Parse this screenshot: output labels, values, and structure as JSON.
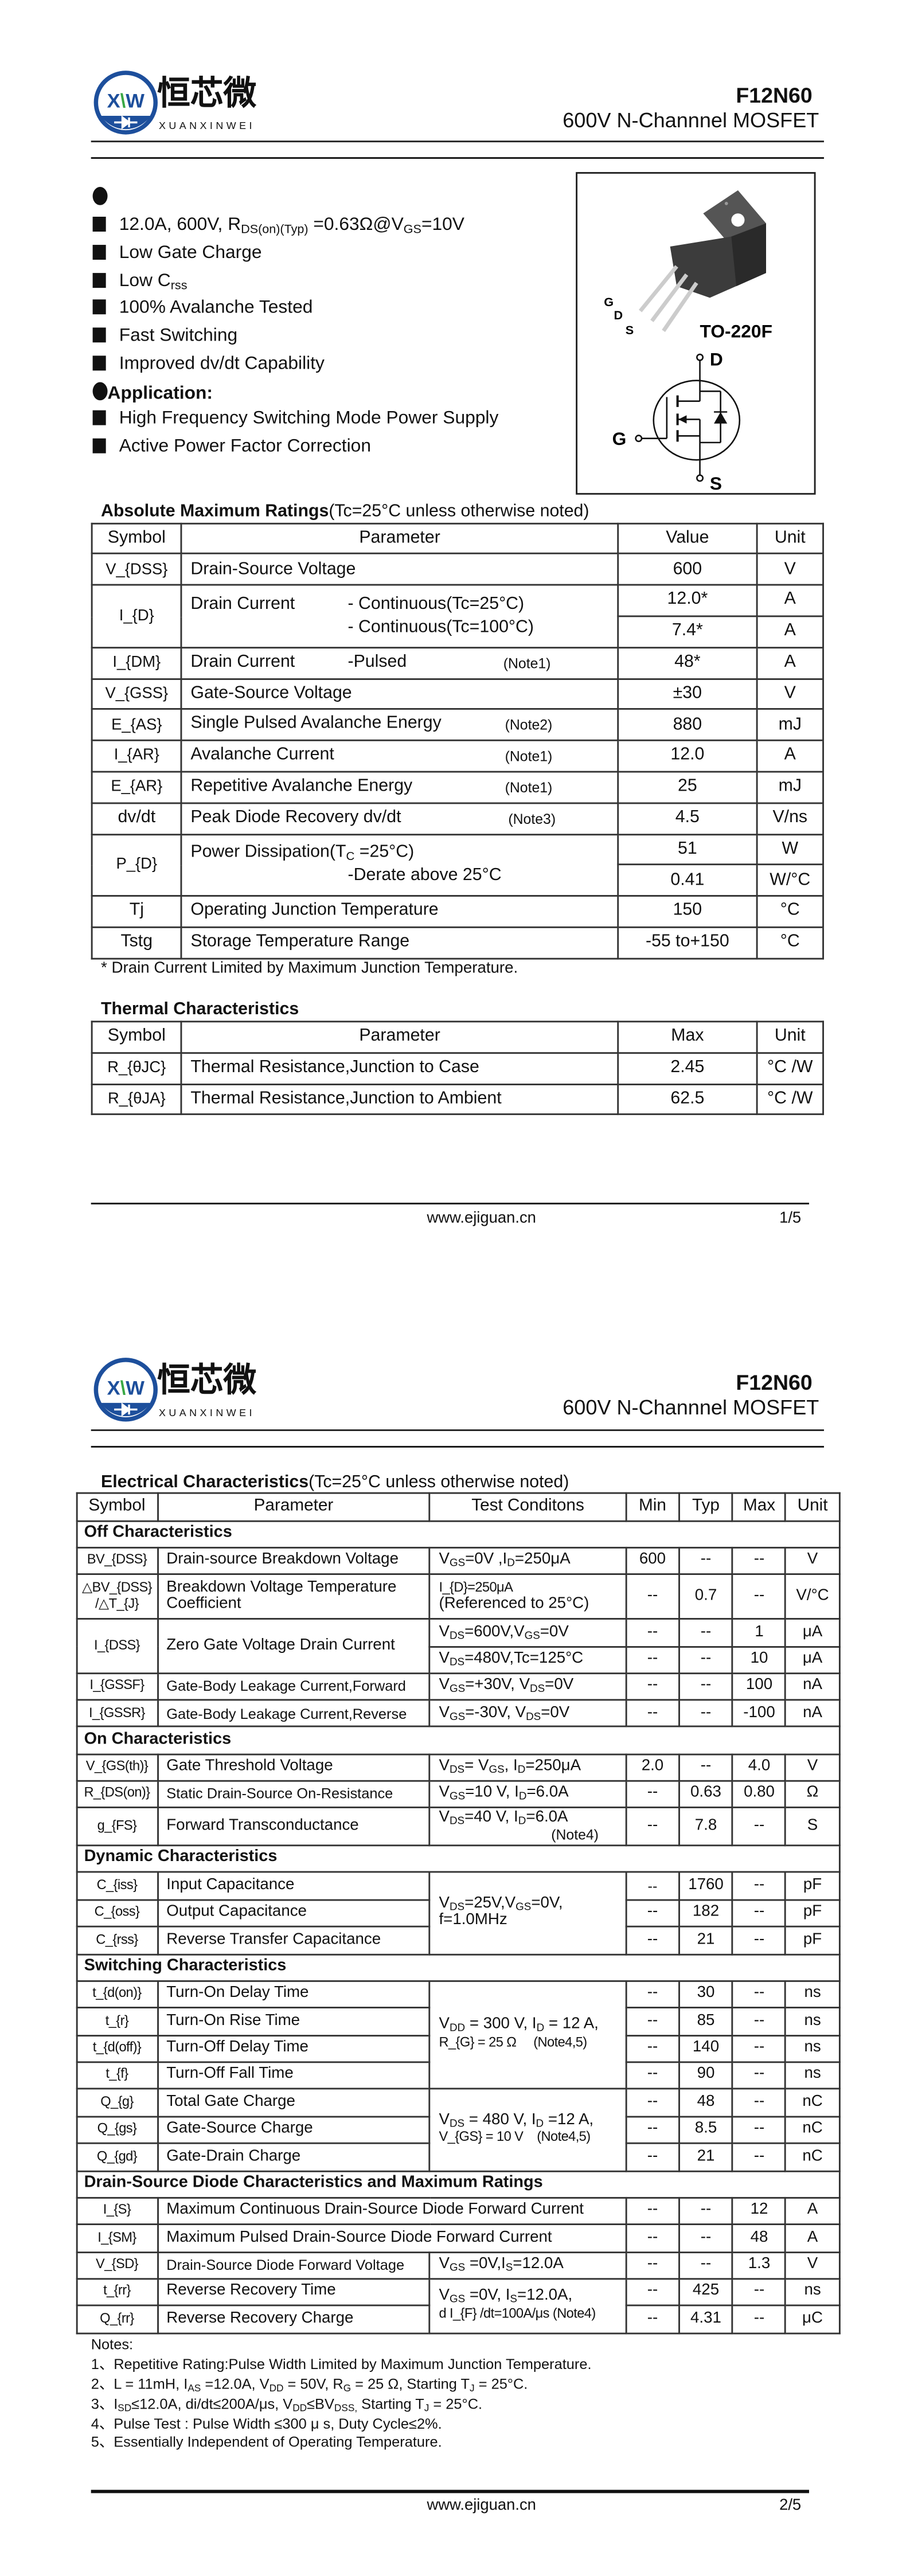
{
  "header": {
    "logo_cn": "恒芯微",
    "logo_en": "XUANXINWEI",
    "logo_mark": "XXW",
    "part_number": "F12N60",
    "subtitle": "600V N-Channnel MOSFET"
  },
  "features": {
    "heading": "",
    "items": [
      "12.0A, 600V, R_{DS(on)(Typ)} =0.63Ω@V_{GS}=10V",
      "Low Gate Charge",
      "Low C_{rss}",
      "100% Avalanche Tested",
      "Fast Switching",
      "Improved dv/dt Capability"
    ]
  },
  "application": {
    "title": "Application:",
    "items": [
      "High Frequency Switching Mode Power Supply",
      "Active Power Factor Correction"
    ]
  },
  "package": {
    "name": "TO-220F",
    "pins": [
      "G",
      "D",
      "S"
    ],
    "symbol_pins": {
      "drain": "D",
      "gate": "G",
      "source": "S"
    }
  },
  "abs_max": {
    "title": "Absolute Maximum Ratings",
    "title_note": "(Tc=25°C unless otherwise noted)",
    "headers": [
      "Symbol",
      "Parameter",
      "Value",
      "Unit"
    ],
    "rows": [
      {
        "symbol": "V_{DSS}",
        "parameter": "Drain-Source Voltage",
        "value": "600",
        "unit": "V"
      },
      {
        "symbol": "I_{D}",
        "parameter": "Drain Current",
        "sub": [
          "- Continuous(Tc=25°C)",
          "- Continuous(Tc=100°C)"
        ],
        "values": [
          "12.0*",
          "7.4*"
        ],
        "units": [
          "A",
          "A"
        ]
      },
      {
        "symbol": "I_{DM}",
        "parameter": "Drain Current",
        "sub": "-Pulsed",
        "note": "(Note1)",
        "value": "48*",
        "unit": "A"
      },
      {
        "symbol": "V_{GSS}",
        "parameter": "Gate-Source Voltage",
        "value": "±30",
        "unit": "V"
      },
      {
        "symbol": "E_{AS}",
        "parameter": "Single Pulsed Avalanche Energy",
        "note": "(Note2)",
        "value": "880",
        "unit": "mJ"
      },
      {
        "symbol": "I_{AR}",
        "parameter": "Avalanche Current",
        "note": "(Note1)",
        "value": "12.0",
        "unit": "A"
      },
      {
        "symbol": "E_{AR}",
        "parameter": "Repetitive Avalanche Energy",
        "note": "(Note1)",
        "value": "25",
        "unit": "mJ"
      },
      {
        "symbol": "dv/dt",
        "parameter": "Peak Diode Recovery dv/dt",
        "note": "(Note3)",
        "value": "4.5",
        "unit": "V/ns"
      },
      {
        "symbol": "P_{D}",
        "parameter": "Power Dissipation(T_{C} =25°C)",
        "sub": "-Derate above 25°C",
        "values": [
          "51",
          "0.41"
        ],
        "units": [
          "W",
          "W/°C"
        ]
      },
      {
        "symbol": "Tj",
        "parameter": "Operating Junction Temperature",
        "value": "150",
        "unit": "°C"
      },
      {
        "symbol": "Tstg",
        "parameter": "Storage Temperature Range",
        "value": "-55 to+150",
        "unit": "°C"
      }
    ],
    "footnote": "* Drain Current Limited by Maximum Junction Temperature."
  },
  "thermal": {
    "title": "Thermal Characteristics",
    "headers": [
      "Symbol",
      "Parameter",
      "Max",
      "Unit"
    ],
    "rows": [
      {
        "symbol": "R_{θJC}",
        "parameter": "Thermal Resistance,Junction to Case",
        "value": "2.45",
        "unit": "°C /W"
      },
      {
        "symbol": "R_{θJA}",
        "parameter": "Thermal Resistance,Junction to Ambient",
        "value": "62.5",
        "unit": "°C /W"
      }
    ]
  },
  "footer": {
    "url": "www.ejiguan.cn",
    "page1": "1/5",
    "page2": "2/5"
  },
  "electrical": {
    "title": "Electrical Characteristics",
    "title_note": "(Tc=25°C unless otherwise noted)",
    "headers": [
      "Symbol",
      "Parameter",
      "Test Conditons",
      "Min",
      "Typ",
      "Max",
      "Unit"
    ],
    "sections": {
      "off": "Off Characteristics",
      "on": "On Characteristics",
      "dynamic": "Dynamic Characteristics",
      "switching": "Switching Characteristics",
      "diode": "Drain-Source Diode Characteristics and Maximum Ratings"
    },
    "off": [
      {
        "symbol": "BV_{DSS}",
        "parameter": "Drain-source Breakdown Voltage",
        "cond": "V_{GS}=0V ,I_{D}=250μA",
        "min": "600",
        "typ": "--",
        "max": "--",
        "unit": "V"
      },
      {
        "symbol": [
          "△BV_{DSS}",
          "/△T_{J}"
        ],
        "parameter": [
          "Breakdown Voltage Temperature",
          "Coefficient"
        ],
        "cond": [
          "I_{D}=250μA",
          "(Referenced to 25°C)"
        ],
        "min": "--",
        "typ": "0.7",
        "max": "--",
        "unit": "V/°C"
      },
      {
        "symbol": "I_{DSS}",
        "parameter": "Zero Gate Voltage Drain Current",
        "conds": [
          {
            "cond": "V_{DS}=600V,V_{GS}=0V",
            "min": "--",
            "typ": "--",
            "max": "1",
            "unit": "μA"
          },
          {
            "cond": "V_{DS}=480V,Tc=125°C",
            "min": "--",
            "typ": "--",
            "max": "10",
            "unit": "μA"
          }
        ]
      },
      {
        "symbol": "I_{GSSF}",
        "parameter": "Gate-Body Leakage Current,Forward",
        "cond": "V_{GS}=+30V, V_{DS}=0V",
        "min": "--",
        "typ": "--",
        "max": "100",
        "unit": "nA"
      },
      {
        "symbol": "I_{GSSR}",
        "parameter": "Gate-Body Leakage Current,Reverse",
        "cond": "V_{GS}=-30V, V_{DS}=0V",
        "min": "--",
        "typ": "--",
        "max": "-100",
        "unit": "nA"
      }
    ],
    "on": [
      {
        "symbol": "V_{GS(th)}",
        "parameter": "Gate Threshold Voltage",
        "cond": "V_{DS}= V_{GS}, I_{D}=250μA",
        "min": "2.0",
        "typ": "--",
        "max": "4.0",
        "unit": "V"
      },
      {
        "symbol": "R_{DS(on)}",
        "parameter": "Static Drain-Source On-Resistance",
        "cond": "V_{GS}=10 V, I_{D}=6.0A",
        "min": "--",
        "typ": "0.63",
        "max": "0.80",
        "unit": "Ω"
      },
      {
        "symbol": "g_{FS}",
        "parameter": "Forward Transconductance",
        "cond": "V_{DS}=40 V, I_{D}=6.0A",
        "cond_note": "(Note4)",
        "min": "--",
        "typ": "7.8",
        "max": "--",
        "unit": "S"
      }
    ],
    "dynamic_cond": [
      "V_{DS}=25V,V_{GS}=0V,",
      "f=1.0MHz"
    ],
    "dynamic": [
      {
        "symbol": "C_{iss}",
        "parameter": "Input Capacitance",
        "min": "--",
        "typ": "1760",
        "max": "--",
        "unit": "pF"
      },
      {
        "symbol": "C_{oss}",
        "parameter": "Output Capacitance",
        "min": "--",
        "typ": "182",
        "max": "--",
        "unit": "pF"
      },
      {
        "symbol": "C_{rss}",
        "parameter": "Reverse Transfer Capacitance",
        "min": "--",
        "typ": "21",
        "max": "--",
        "unit": "pF"
      }
    ],
    "switching_cond": [
      "V_{DD} = 300 V, I_{D} = 12 A,",
      "R_{G} = 25 Ω     (Note4,5)"
    ],
    "switching": [
      {
        "symbol": "t_{d(on)}",
        "parameter": "Turn-On Delay Time",
        "min": "--",
        "typ": "30",
        "max": "--",
        "unit": "ns"
      },
      {
        "symbol": "t_{r}",
        "parameter": "Turn-On Rise Time",
        "min": "--",
        "typ": "85",
        "max": "--",
        "unit": "ns"
      },
      {
        "symbol": "t_{d(off)}",
        "parameter": "Turn-Off Delay Time",
        "min": "--",
        "typ": "140",
        "max": "--",
        "unit": "ns"
      },
      {
        "symbol": "t_{f}",
        "parameter": "Turn-Off Fall Time",
        "min": "--",
        "typ": "90",
        "max": "--",
        "unit": "ns"
      }
    ],
    "charge_cond": [
      "V_{DS} = 480 V, I_{D} =12 A,",
      "V_{GS} = 10 V    (Note4,5)"
    ],
    "charge": [
      {
        "symbol": "Q_{g}",
        "parameter": "Total Gate Charge",
        "min": "--",
        "typ": "48",
        "max": "--",
        "unit": "nC"
      },
      {
        "symbol": "Q_{gs}",
        "parameter": "Gate-Source Charge",
        "min": "--",
        "typ": "8.5",
        "max": "--",
        "unit": "nC"
      },
      {
        "symbol": "Q_{gd}",
        "parameter": "Gate-Drain Charge",
        "min": "--",
        "typ": "21",
        "max": "--",
        "unit": "nC"
      }
    ],
    "diode": [
      {
        "symbol": "I_{S}",
        "parameter": "Maximum Continuous Drain-Source Diode Forward Current",
        "min": "--",
        "typ": "--",
        "max": "12",
        "unit": "A"
      },
      {
        "symbol": "I_{SM}",
        "parameter": "Maximum Pulsed Drain-Source Diode Forward Current",
        "min": "--",
        "typ": "--",
        "max": "48",
        "unit": "A"
      },
      {
        "symbol": "V_{SD}",
        "parameter": "Drain-Source Diode Forward Voltage",
        "cond": "V_{GS} =0V,I_{S}=12.0A",
        "min": "--",
        "typ": "--",
        "max": "1.3",
        "unit": "V"
      }
    ],
    "recovery_cond": [
      "V_{GS} =0V, I_{S}=12.0A,",
      "d I_{F} /dt=100A/μs (Note4)"
    ],
    "recovery": [
      {
        "symbol": "t_{rr}",
        "parameter": "Reverse Recovery Time",
        "min": "--",
        "typ": "425",
        "max": "--",
        "unit": "ns"
      },
      {
        "symbol": "Q_{rr}",
        "parameter": "Reverse Recovery Charge",
        "min": "--",
        "typ": "4.31",
        "max": "--",
        "unit": "μC"
      }
    ]
  },
  "notes": {
    "title": "Notes:",
    "items": [
      "1、Repetitive Rating:Pulse Width Limited by Maximum Junction Temperature.",
      "2、L = 11mH, I_{AS} =12.0A, V_{DD} = 50V, R_{G} = 25 Ω, Starting T_{J} = 25°C.",
      "3、I_{SD}≤12.0A, di/dt≤200A/μs, V_{DD}≤BV_{DSS,} Starting T_{J} = 25°C.",
      "4、Pulse Test : Pulse Width ≤300 μ s, Duty Cycle≤2%.",
      "5、Essentially Independent of Operating Temperature."
    ]
  },
  "colors": {
    "logo_blue": "#1d4f9c",
    "logo_green": "#3aa845",
    "text": "#111111",
    "package_body": "#3c3c3c"
  }
}
